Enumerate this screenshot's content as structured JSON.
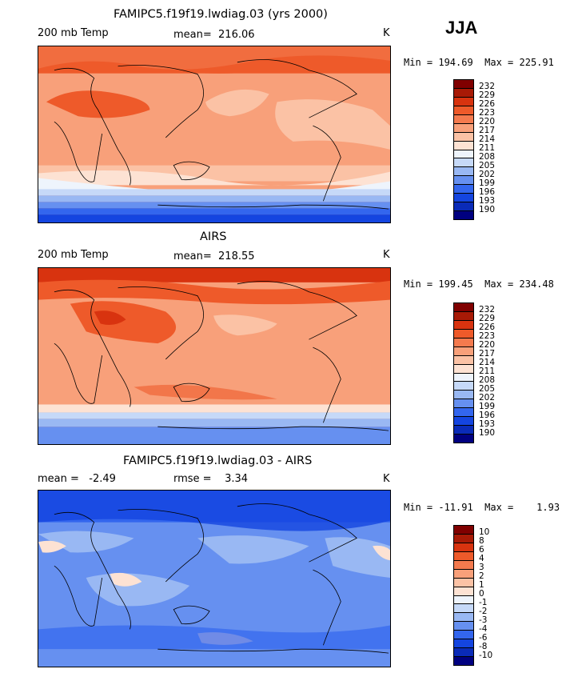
{
  "season": "JJA",
  "colors": {
    "abs": [
      "#000080",
      "#0a2bb8",
      "#1445e0",
      "#3366ee",
      "#6690f0",
      "#99b8f3",
      "#c6d9f8",
      "#eef4fc",
      "#fde2d3",
      "#fbc2a5",
      "#f8a07a",
      "#f47a4e",
      "#ee5a2a",
      "#d8330f",
      "#a81a06",
      "#800000"
    ],
    "diff": [
      "#000080",
      "#0a2bb8",
      "#1445e0",
      "#3366ee",
      "#6690f0",
      "#99b8f3",
      "#c6d9f8",
      "#eef4fc",
      "#fde2d3",
      "#fbc2a5",
      "#f8a07a",
      "#f47a4e",
      "#ee5a2a",
      "#d8330f",
      "#a81a06",
      "#800000"
    ]
  },
  "panels": [
    {
      "title": "FAMIPC5.f19f19.lwdiag.03 (yrs 2000)",
      "left_label": "200 mb Temp",
      "center_label": "mean=  216.06",
      "units": "K",
      "minmax": "Min = 194.69  Max = 225.91",
      "colorbar_labels": [
        "232",
        "229",
        "226",
        "223",
        "220",
        "217",
        "214",
        "211",
        "208",
        "205",
        "202",
        "199",
        "196",
        "193",
        "190"
      ]
    },
    {
      "title": "AIRS",
      "left_label": "200 mb Temp",
      "center_label": "mean=  218.55",
      "units": "K",
      "minmax": "Min = 199.45  Max = 234.48",
      "colorbar_labels": [
        "232",
        "229",
        "226",
        "223",
        "220",
        "217",
        "214",
        "211",
        "208",
        "205",
        "202",
        "199",
        "196",
        "193",
        "190"
      ]
    },
    {
      "title": "FAMIPC5.f19f19.lwdiag.03 - AIRS",
      "left_label": "mean =   -2.49",
      "center_label": "rmse =    3.34",
      "units": "K",
      "minmax": "Min = -11.91  Max =    1.93",
      "colorbar_labels": [
        "10",
        "8",
        "6",
        "4",
        "3",
        "2",
        "1",
        "0",
        "-1",
        "-2",
        "-3",
        "-4",
        "-6",
        "-8",
        "-10"
      ]
    }
  ]
}
